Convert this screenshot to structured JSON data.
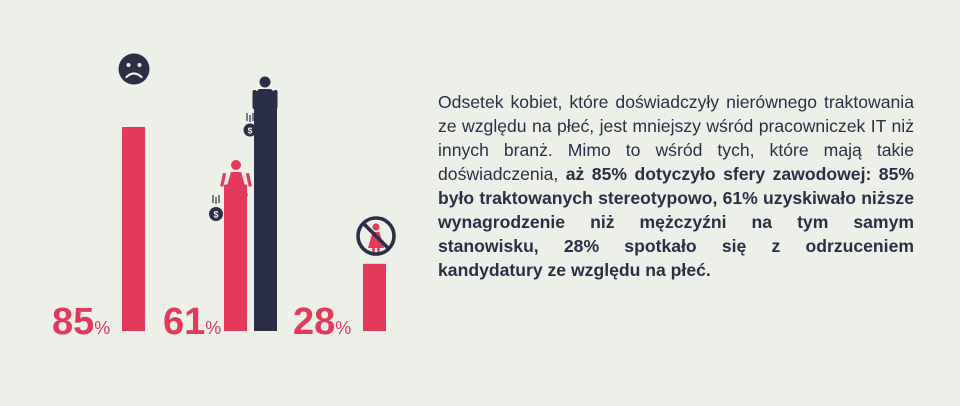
{
  "colors": {
    "background": "#ecf0e9",
    "accent_pink": "#e33a5c",
    "dark_navy": "#2b2f45"
  },
  "chart_data": {
    "type": "bar",
    "ylim": [
      0,
      100
    ],
    "groups": [
      {
        "value_label": "85",
        "unit": "%",
        "bars": [
          {
            "value": 85,
            "color": "#e33a5c",
            "icon": "sad-face-icon"
          }
        ]
      },
      {
        "value_label": "61",
        "unit": "%",
        "bars": [
          {
            "value": 61,
            "color": "#e33a5c",
            "icon": "woman-icon",
            "secondary_icon": "money-bag-icon"
          },
          {
            "value": 100,
            "color": "#2b2f45",
            "icon": "man-icon",
            "secondary_icon": "money-bag-icon"
          }
        ]
      },
      {
        "value_label": "28",
        "unit": "%",
        "bars": [
          {
            "value": 28,
            "color": "#e33a5c",
            "icon": "prohibited-woman-icon"
          }
        ]
      }
    ]
  },
  "text": {
    "normal": "Odsetek kobiet, które doświadczyły nierównego traktowania ze względu na płeć, jest mniejszy wśród pracowniczek IT niż innych branż. Mimo to wśród tych, które mają takie doświadczenia, ",
    "bold": "aż 85% dotyczyło sfery zawodowej: 85% było traktowanych stereotypowo, 61% uzyskiwało niższe wynagrodzenie niż mężczyźni na tym samym stanowisku, 28% spotkało się z odrzuceniem kandydatury ze względu na płeć."
  }
}
